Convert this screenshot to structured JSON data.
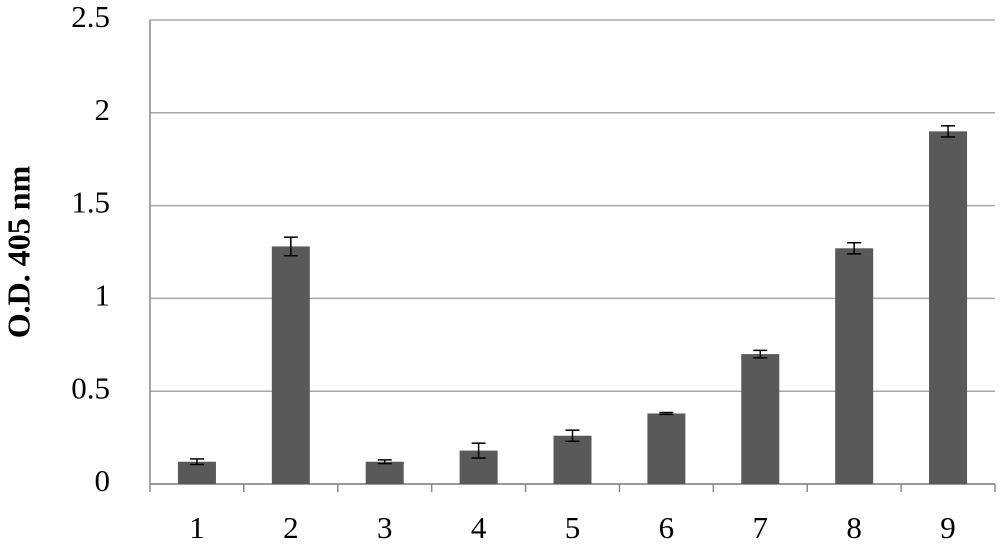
{
  "chart_data": {
    "type": "bar",
    "y_label": "O.D. 405 nm",
    "categories": [
      "1",
      "2",
      "3",
      "4",
      "5",
      "6",
      "7",
      "8",
      "9"
    ],
    "values": [
      0.12,
      1.28,
      0.12,
      0.18,
      0.26,
      0.38,
      0.7,
      1.27,
      1.9
    ],
    "errors": [
      0.015,
      0.05,
      0.01,
      0.04,
      0.03,
      0.005,
      0.02,
      0.03,
      0.03
    ],
    "color": "#595959",
    "ylim": [
      0,
      2.5
    ],
    "yticks": [
      0,
      0.5,
      1,
      1.5,
      2,
      2.5
    ],
    "grid": true
  }
}
